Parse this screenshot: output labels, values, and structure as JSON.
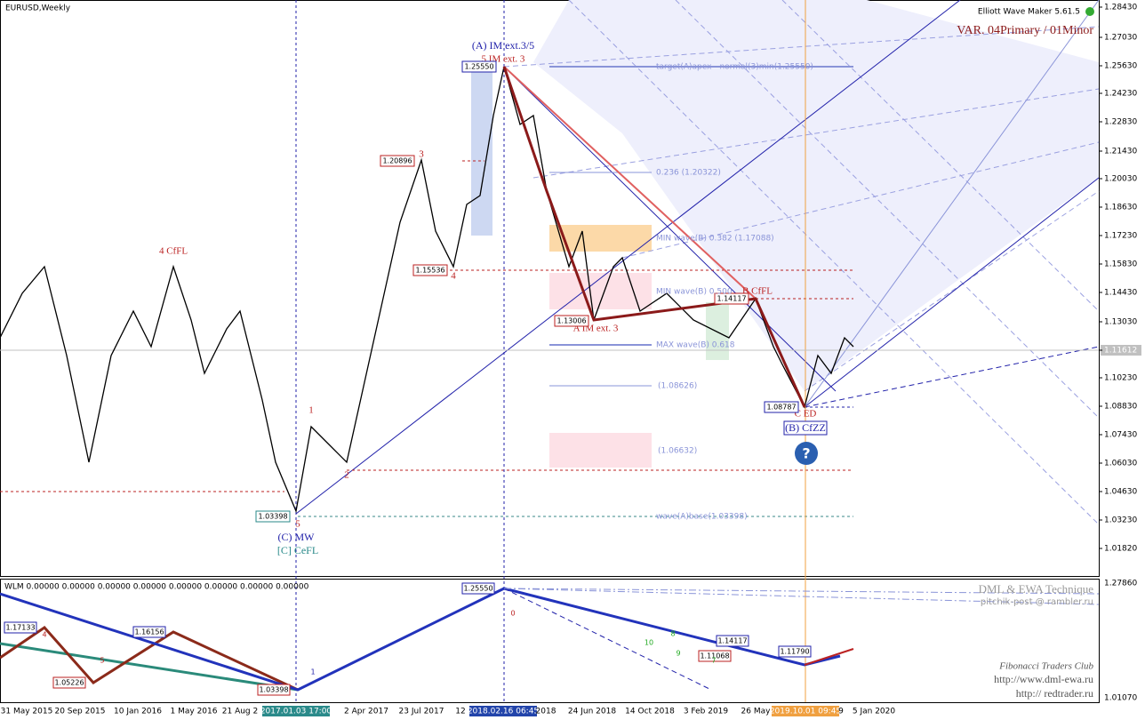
{
  "header": {
    "symbol": "EURUSD,Weekly",
    "indicator": "Elliott Wave Maker 5.61.5",
    "variant": "VAR. 04Primary / 01Minor"
  },
  "price_axis": [
    "1.28430",
    "1.27030",
    "1.25630",
    "1.24230",
    "1.22830",
    "1.21430",
    "1.20030",
    "1.18630",
    "1.17230",
    "1.15830",
    "1.14430",
    "1.13030",
    "1.11612",
    "1.10230",
    "1.08830",
    "1.07430",
    "1.06030",
    "1.04630",
    "1.03230",
    "1.01820"
  ],
  "time_axis": [
    "31 May 2015",
    "20 Sep 2015",
    "10 Jan 2016",
    "1 May 2016",
    "21 Aug 2",
    "2017.01.03 17:00",
    "2 Apr 2017",
    "23 Jul 2017",
    "12",
    "2018.02.16 06:45",
    "2018",
    "24 Jun 2018",
    "14 Oct 2018",
    "3 Feb 2019",
    "26 May",
    "2019.10.01 09:45",
    "9",
    "5 Jan 2020"
  ],
  "wave_labels": [
    "(A) IM ext.3/5",
    "5 IM ext. 3",
    "3",
    "4",
    "4 CfFL",
    "1",
    "2",
    "5",
    "(C) MW",
    "[C] CeFL",
    "A IM ext. 3",
    "B CfFL",
    "C ED",
    "(B) CfZZ"
  ],
  "price_boxes": [
    "1.25550",
    "1.20896",
    "1.15536",
    "1.13006",
    "1.14117",
    "1.08787",
    "1.03398"
  ],
  "fib_labels": [
    "target(A)apex - normal(3)min(1.25550)",
    "0.236 (1.20322)",
    "MIN wave(B) 0.382 (1.17088)",
    "MIN wave(B) 0.500",
    "MAX wave(B) 0.618",
    "(1.08626)",
    "(1.06632)",
    "wave(A)base(1.03398)"
  ],
  "indicator_panel": {
    "title": "WLM 0.00000 0.00000 0.00000 0.00000 0.00000 0.00000 0.00000 0.00000",
    "axis": [
      "1.27860",
      "1.01070"
    ],
    "price_boxes": [
      "1.25550",
      "1.17133",
      "1.16156",
      "1.05226",
      "1.03398",
      "1.14117",
      "1.11068",
      "1.11790"
    ],
    "counts": [
      "1",
      "4",
      "5",
      "0",
      "10",
      "9",
      "8",
      "7"
    ],
    "credits": [
      "DML & EWA Technique",
      "pitchik-post @ rambler.ru",
      "Fibonacci    Traders    Club",
      "http://www.dml-ewa.ru",
      "http://  redtrader.ru"
    ]
  }
}
